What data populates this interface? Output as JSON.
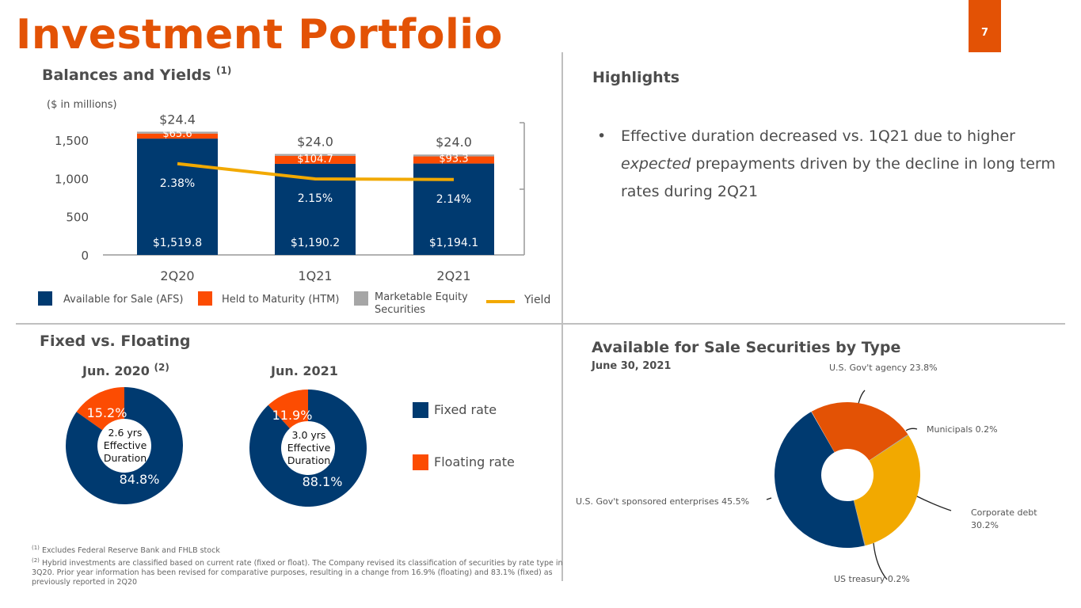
{
  "page": {
    "title": "Investment Portfolio",
    "page_number": "7"
  },
  "colors": {
    "navy": "#003a70",
    "orange": "#e35205",
    "htm": "#fc4c02",
    "gold": "#f2a900",
    "gray": "#a6a6a6"
  },
  "balances": {
    "heading": "Balances and Yields",
    "heading_note": "(1)",
    "units": "($ in millions)",
    "legend": {
      "afs": "Available for Sale (AFS)",
      "htm": "Held to Maturity (HTM)",
      "equity": "Marketable Equity Securities",
      "yield": "Yield"
    }
  },
  "highlights": {
    "heading": "Highlights",
    "bullet_pre": "Effective duration decreased vs. 1Q21 due to higher ",
    "bullet_em": "expected",
    "bullet_post": " prepayments driven by the decline in long term rates during 2Q21"
  },
  "fixed_floating": {
    "heading": "Fixed vs. Floating",
    "legend": {
      "fixed": "Fixed rate",
      "floating": "Floating rate"
    }
  },
  "afs_type": {
    "heading": "Available for Sale Securities by Type",
    "subheading": "June 30, 2021"
  },
  "footnotes": {
    "n1_mark": "(1)",
    "n1": "Excludes Federal Reserve Bank and FHLB stock",
    "n2_mark": "(2)",
    "n2": "Hybrid investments are classified based on current rate (fixed or float). The Company revised its classification of securities by rate type in 3Q20. Prior year information has been revised for comparative purposes, resulting in a change from 16.9% (floating) and 83.1% (fixed) as previously reported in 2Q20"
  },
  "chart_data": [
    {
      "type": "bar",
      "title": "Balances and Yields",
      "ylabel": "($ in millions)",
      "categories": [
        "2Q20",
        "1Q21",
        "2Q21"
      ],
      "ylim": [
        0,
        1700
      ],
      "yticks": [
        "0",
        "500",
        "1,000",
        "1,500"
      ],
      "ytick_values": [
        0,
        500,
        1000,
        1500
      ],
      "stacked": true,
      "series": [
        {
          "name": "Available for Sale (AFS)",
          "values": [
            1519.8,
            1190.2,
            1194.1
          ],
          "labels": [
            "$1,519.8",
            "$1,190.2",
            "$1,194.1"
          ]
        },
        {
          "name": "Held to Maturity (HTM)",
          "values": [
            65.6,
            104.7,
            93.3
          ],
          "labels": [
            "$65.6",
            "$104.7",
            "$93.3"
          ]
        },
        {
          "name": "Marketable Equity Securities",
          "values": [
            24.4,
            24.0,
            24.0
          ],
          "labels": [
            "$24.4",
            "$24.0",
            "$24.0"
          ]
        }
      ],
      "line_series": {
        "name": "Yield",
        "values": [
          2.38,
          2.15,
          2.14
        ],
        "labels": [
          "2.38%",
          "2.15%",
          "2.14%"
        ],
        "y2lim": [
          1.0,
          3.0
        ]
      },
      "legend": "bottom"
    },
    {
      "type": "pie",
      "title": "Jun. 2020",
      "title_note": "(2)",
      "center_text": [
        "2.6 yrs",
        "Effective",
        "Duration"
      ],
      "slices": [
        {
          "name": "Floating rate",
          "value": 15.2,
          "label": "15.2%"
        },
        {
          "name": "Fixed rate",
          "value": 84.8,
          "label": "84.8%"
        }
      ]
    },
    {
      "type": "pie",
      "title": "Jun. 2021",
      "center_text": [
        "3.0 yrs",
        "Effective",
        "Duration"
      ],
      "slices": [
        {
          "name": "Floating rate",
          "value": 11.9,
          "label": "11.9%"
        },
        {
          "name": "Fixed rate",
          "value": 88.1,
          "label": "88.1%"
        }
      ]
    },
    {
      "type": "pie",
      "title": "Available for Sale Securities by Type",
      "subtitle": "June 30, 2021",
      "slices": [
        {
          "name": "U.S. Gov't agency",
          "value": 23.8,
          "label": "U.S. Gov't agency 23.8%"
        },
        {
          "name": "Municipals",
          "value": 0.2,
          "label": "Municipals 0.2%"
        },
        {
          "name": "Corporate debt",
          "value": 30.2,
          "label": "Corporate debt",
          "label2": "30.2%"
        },
        {
          "name": "US treasury",
          "value": 0.2,
          "label": "US treasury 0.2%"
        },
        {
          "name": "U.S. Gov't sponsored enterprises",
          "value": 45.5,
          "label": "U.S. Gov't sponsored enterprises 45.5%"
        }
      ]
    }
  ]
}
